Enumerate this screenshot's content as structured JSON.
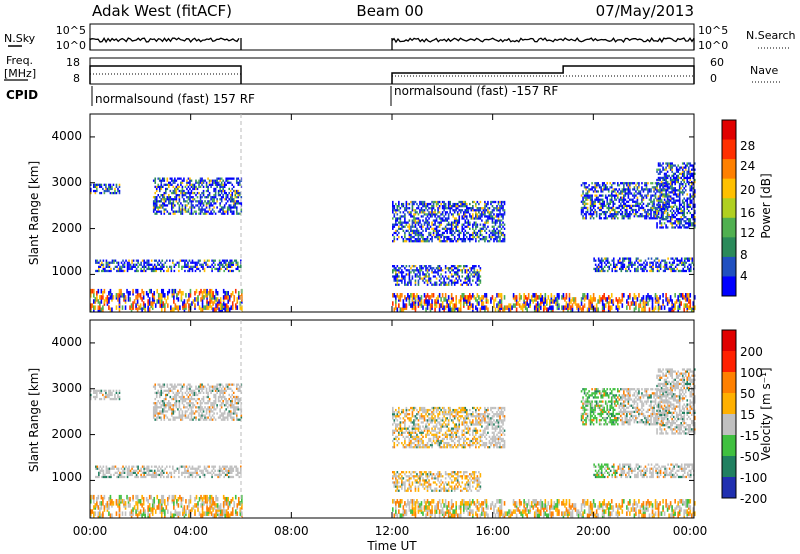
{
  "header": {
    "title_left": "Adak West (fitACF)",
    "title_center": "Beam 00",
    "title_right": "07/May/2013"
  },
  "nsky_panel": {
    "label": "N.Sky",
    "right_label": "N.Search",
    "left_ticks": [
      "10^5",
      "10^0"
    ],
    "right_ticks": [
      "10^5",
      "10^0"
    ]
  },
  "freq_panel": {
    "label_line1": "Freq.",
    "label_line2": "[MHz]",
    "left_ticks": [
      "18",
      "8"
    ],
    "right_ticks": [
      "60",
      "0"
    ],
    "right_label": "Nave"
  },
  "cpid": {
    "label": "CPID",
    "segments": [
      "normalsound (fast) 157 RF",
      "normalsound (fast) -157 RF"
    ]
  },
  "power_panel": {
    "ylabel": "Slant Range [km]",
    "yticks": [
      "4000",
      "3000",
      "2000",
      "1000"
    ],
    "colorbar_label": "Power [dB]",
    "colorbar_ticks": [
      "28",
      "24",
      "20",
      "16",
      "12",
      "8",
      "4"
    ],
    "colors": [
      "#0000ff",
      "#2050c0",
      "#2a8a5a",
      "#50b050",
      "#b0d020",
      "#ffc000",
      "#ff8000",
      "#ff3000",
      "#e00000"
    ]
  },
  "velocity_panel": {
    "ylabel": "Slant Range [km]",
    "yticks": [
      "4000",
      "3000",
      "2000",
      "1000"
    ],
    "colorbar_label": "Velocity [m s⁻¹]",
    "colorbar_ticks": [
      "200",
      "100",
      "50",
      "15",
      "-15",
      "-50",
      "-100",
      "-200"
    ],
    "colors": [
      "#2030b0",
      "#208060",
      "#40c040",
      "#c0c0c0",
      "#ffb000",
      "#ff8000",
      "#ff2000",
      "#e00000"
    ]
  },
  "xaxis": {
    "label": "Time UT",
    "ticks": [
      "00:00",
      "04:00",
      "08:00",
      "12:00",
      "16:00",
      "20:00",
      "00:00"
    ]
  },
  "chart_data": {
    "type": "heatmap",
    "x_range_hours": [
      0,
      24
    ],
    "y_range_km": [
      180,
      4500
    ],
    "data_gap_hours": [
      6,
      12
    ],
    "power_range_db": [
      0,
      30
    ],
    "velocity_range": [
      -250,
      250
    ],
    "echo_regions": [
      {
        "t": [
          0.0,
          6.0
        ],
        "r": [
          180,
          600
        ],
        "kind": "ground scatter"
      },
      {
        "t": [
          0.2,
          6.0
        ],
        "r": [
          1050,
          1280
        ],
        "kind": "ionospheric"
      },
      {
        "t": [
          0.0,
          1.2
        ],
        "r": [
          2750,
          2950
        ],
        "kind": "ionospheric"
      },
      {
        "t": [
          2.5,
          6.0
        ],
        "r": [
          2300,
          3100
        ],
        "kind": "ionospheric"
      },
      {
        "t": [
          12.0,
          24.0
        ],
        "r": [
          180,
          500
        ],
        "kind": "ground scatter"
      },
      {
        "t": [
          12.0,
          15.5
        ],
        "r": [
          750,
          1200
        ],
        "kind": "ionospheric"
      },
      {
        "t": [
          12.0,
          16.5
        ],
        "r": [
          1700,
          2600
        ],
        "kind": "ionospheric"
      },
      {
        "t": [
          19.5,
          23.0
        ],
        "r": [
          2200,
          3000
        ],
        "kind": "ionospheric"
      },
      {
        "t": [
          20.0,
          24.0
        ],
        "r": [
          1050,
          1350
        ],
        "kind": "ionospheric"
      },
      {
        "t": [
          22.5,
          24.0
        ],
        "r": [
          2000,
          3400
        ],
        "kind": "ionospheric"
      }
    ]
  }
}
